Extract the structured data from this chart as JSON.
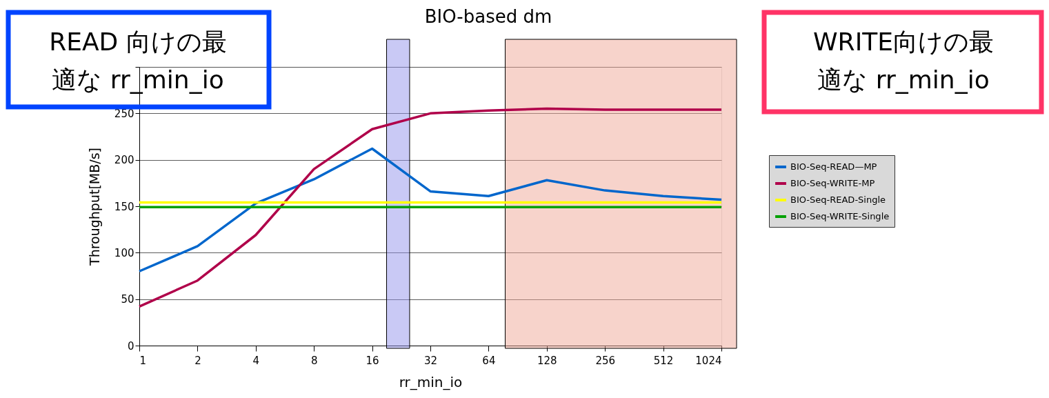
{
  "chart_data": {
    "type": "line",
    "title": "BIO-based dm",
    "xlabel": "rr_min_io",
    "ylabel": "Throughput[MB/s]",
    "x": [
      1,
      2,
      4,
      8,
      16,
      32,
      64,
      128,
      256,
      512,
      1024
    ],
    "log": "x",
    "xlim": [
      1,
      1024
    ],
    "xticks": [
      1,
      2,
      4,
      8,
      16,
      32,
      64,
      128,
      256,
      512,
      1024
    ],
    "ylim": [
      0,
      300
    ],
    "yticks": [
      0,
      50,
      100,
      150,
      200,
      250,
      {
        "value": 300,
        "label": null
      }
    ],
    "grid": "y",
    "legend": "right",
    "marker": "none",
    "line_style": "solid",
    "series": [
      {
        "name": "BIO-Seq-READ—MP",
        "color": "#0066cc",
        "values": [
          80,
          107,
          153,
          179,
          212,
          166,
          161,
          178,
          167,
          161,
          157
        ]
      },
      {
        "name": "BIO-Seq-WRITE-MP",
        "color": "#b0004a",
        "values": [
          42,
          70,
          119,
          190,
          233,
          250,
          253,
          255,
          254,
          254,
          254
        ]
      },
      {
        "name": "BIO-Seq-READ-Single",
        "color": "#ffff00",
        "values": [
          154,
          154,
          154,
          154,
          154,
          154,
          154,
          154,
          154,
          154,
          154
        ]
      },
      {
        "name": "BIO-Seq-WRITE-Single",
        "color": "#00a000",
        "values": [
          149,
          149,
          149,
          149,
          149,
          149,
          149,
          149,
          149,
          149,
          149
        ]
      }
    ],
    "bands": [
      {
        "axis": "x",
        "from": 19,
        "to": 25,
        "color": "#9494ec"
      },
      {
        "axis": "x",
        "from": 78,
        "to": 1227,
        "color": "#f0a898"
      }
    ],
    "annotations": [
      "READ 向けの最",
      "適な  rr_min_io",
      "WRITE向けの最",
      "適な  rr_min_io"
    ]
  }
}
